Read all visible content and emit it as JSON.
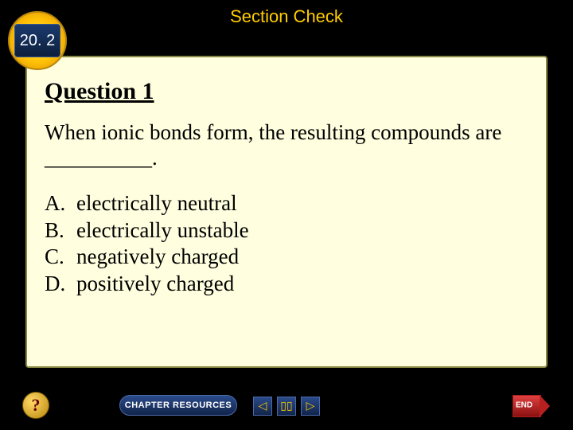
{
  "header": {
    "title": "Section Check",
    "section_number": "20. 2"
  },
  "content": {
    "question_title": "Question 1",
    "question_text": "When ionic bonds form, the resulting compounds are __________.",
    "answers": [
      {
        "letter": "A.",
        "text": "electrically neutral"
      },
      {
        "letter": "B.",
        "text": "electrically unstable"
      },
      {
        "letter": "C.",
        "text": "negatively charged"
      },
      {
        "letter": "D.",
        "text": "positively charged"
      }
    ]
  },
  "navbar": {
    "help_label": "?",
    "chapter_label": "CHAPTER RESOURCES",
    "prev_glyph": "◁",
    "pause_glyph": "▯▯",
    "next_glyph": "▷",
    "end_label": "END"
  },
  "colors": {
    "background": "#000000",
    "content_bg": "#ffffe0",
    "accent_gold": "#ffcc00",
    "nav_blue": "#1a3a6e",
    "end_red": "#b82020"
  }
}
